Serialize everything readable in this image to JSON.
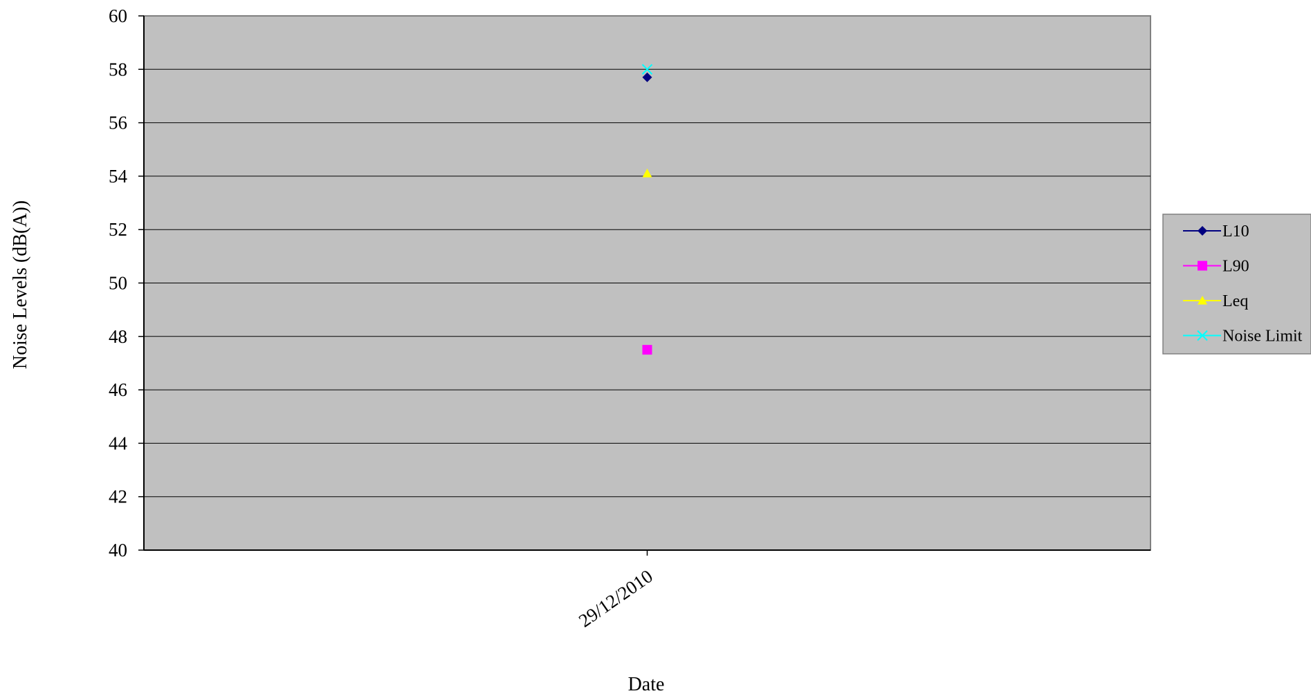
{
  "chart_data": {
    "type": "line",
    "title": "",
    "xlabel": "Date",
    "ylabel": "Noise Levels (dB(A))",
    "categories": [
      "29/12/2010"
    ],
    "ylim": [
      40,
      60
    ],
    "ytick_step": 2,
    "yticks": [
      "40",
      "42",
      "44",
      "46",
      "48",
      "50",
      "52",
      "54",
      "56",
      "58",
      "60"
    ],
    "grid": true,
    "legend_position": "right",
    "plot_background": "#c0c0c0",
    "series": [
      {
        "name": "L10",
        "values": [
          57.7
        ],
        "color": "#000080",
        "marker": "diamond"
      },
      {
        "name": "L90",
        "values": [
          47.5
        ],
        "color": "#ff00ff",
        "marker": "square"
      },
      {
        "name": "Leq",
        "values": [
          54.1
        ],
        "color": "#ffff00",
        "marker": "triangle"
      },
      {
        "name": "Noise Limit",
        "values": [
          58
        ],
        "color": "#00ffff",
        "marker": "x"
      }
    ]
  }
}
